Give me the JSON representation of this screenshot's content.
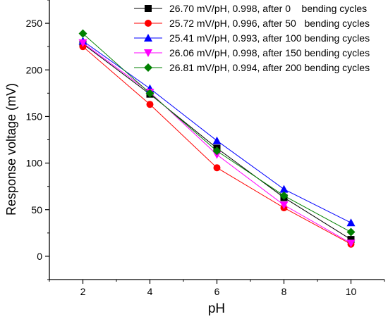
{
  "chart_data": {
    "type": "line",
    "title": "",
    "xlabel": "pH",
    "ylabel": "Response voltage (mV)",
    "x": [
      2,
      4,
      6,
      8,
      10
    ],
    "xlim": [
      1,
      11
    ],
    "ylim": [
      -25,
      275
    ],
    "xticks": [
      2,
      4,
      6,
      8,
      10
    ],
    "yticks": [
      0,
      50,
      100,
      150,
      200,
      250
    ],
    "grid": false,
    "legend_position": "top-right",
    "series": [
      {
        "name": "26.70 mV/pH, 0.998, after 0    bending cycles",
        "values": [
          228,
          174,
          116,
          63,
          18
        ],
        "color": "#000000",
        "marker": "square"
      },
      {
        "name": "25.72 mV/pH, 0.996, after 50   bending cycles",
        "values": [
          225,
          163,
          95,
          52,
          13
        ],
        "color": "#ff0000",
        "marker": "circle"
      },
      {
        "name": "25.41 mV/pH, 0.993, after 100 bending cycles",
        "values": [
          231,
          180,
          124,
          72,
          36
        ],
        "color": "#0000ff",
        "marker": "triangle-up"
      },
      {
        "name": "26.06 mV/pH, 0.998, after 150 bending cycles",
        "values": [
          229,
          176,
          109,
          55,
          14
        ],
        "color": "#ff00ff",
        "marker": "triangle-down"
      },
      {
        "name": "26.81 mV/pH, 0.994, after 200 bending cycles",
        "values": [
          239,
          175,
          113,
          65,
          26
        ],
        "color": "#008000",
        "marker": "diamond"
      }
    ]
  }
}
